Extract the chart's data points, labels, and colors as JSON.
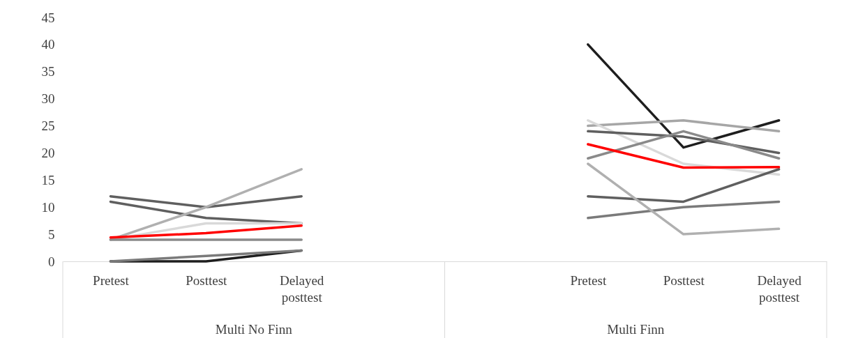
{
  "chart_data": {
    "type": "line",
    "categories": [
      "Pretest",
      "Posttest",
      "Delayed posttest",
      null,
      null,
      "Pretest",
      "Posttest",
      "Delayed posttest"
    ],
    "ylim": [
      0,
      45
    ],
    "yticks": [
      0,
      5,
      10,
      15,
      20,
      25,
      30,
      35,
      40,
      45
    ],
    "grid": false,
    "legend": false,
    "line_style": "solid",
    "annotations": [
      "Multi No Finn",
      "Multi Finn"
    ],
    "series": [
      {
        "color": "#5f5f5f",
        "values": [
          12,
          10,
          12,
          null,
          null,
          null,
          null,
          null
        ]
      },
      {
        "color": "#5f5f5f",
        "values": [
          11,
          8,
          7,
          null,
          null,
          null,
          null,
          null
        ]
      },
      {
        "color": "#b0b0b0",
        "values": [
          4,
          10,
          17,
          null,
          null,
          null,
          null,
          null
        ]
      },
      {
        "color": "#d9d9d9",
        "values": [
          4,
          7,
          7,
          null,
          null,
          null,
          null,
          null
        ]
      },
      {
        "color": "#8a8a8a",
        "values": [
          4,
          4,
          4,
          null,
          null,
          null,
          null,
          null
        ]
      },
      {
        "color": "#1e1e1e",
        "values": [
          0,
          0,
          2,
          null,
          null,
          null,
          null,
          null
        ]
      },
      {
        "color": "#7a7a7a",
        "values": [
          0,
          1,
          2,
          null,
          null,
          null,
          null,
          null
        ]
      },
      {
        "color": "#ff0000",
        "values": [
          4.4,
          5.2,
          6.6,
          null,
          null,
          null,
          null,
          null
        ]
      },
      {
        "color": "#1e1e1e",
        "values": [
          null,
          null,
          null,
          null,
          null,
          40,
          21,
          26
        ]
      },
      {
        "color": "#a6a6a6",
        "values": [
          null,
          null,
          null,
          null,
          null,
          25,
          26,
          24
        ]
      },
      {
        "color": "#d9d9d9",
        "values": [
          null,
          null,
          null,
          null,
          null,
          26,
          18,
          16
        ]
      },
      {
        "color": "#5f5f5f",
        "values": [
          null,
          null,
          null,
          null,
          null,
          24,
          23,
          20
        ]
      },
      {
        "color": "#8a8a8a",
        "values": [
          null,
          null,
          null,
          null,
          null,
          19,
          24,
          19
        ]
      },
      {
        "color": "#5f5f5f",
        "values": [
          null,
          null,
          null,
          null,
          null,
          12,
          11,
          17
        ]
      },
      {
        "color": "#7a7a7a",
        "values": [
          null,
          null,
          null,
          null,
          null,
          8,
          10,
          11
        ]
      },
      {
        "color": "#b0b0b0",
        "values": [
          null,
          null,
          null,
          null,
          null,
          18,
          5,
          6
        ]
      },
      {
        "color": "#ff0000",
        "values": [
          null,
          null,
          null,
          null,
          null,
          21.6,
          17.3,
          17.4
        ]
      }
    ]
  }
}
